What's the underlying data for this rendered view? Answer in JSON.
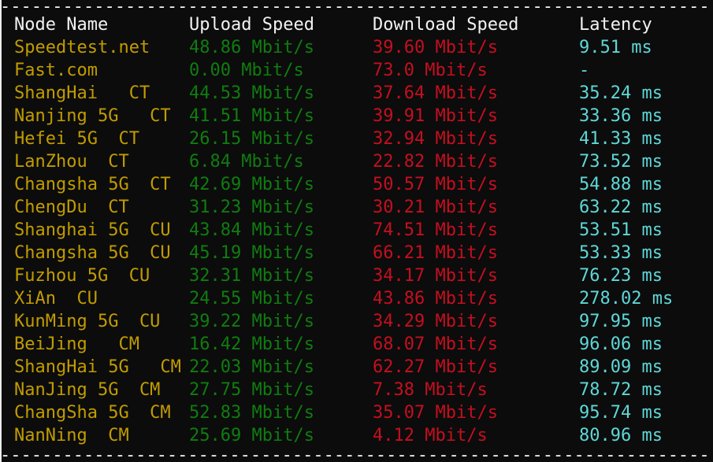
{
  "terminal": {
    "divider": "--------------------------------------------------------------------",
    "columns": [
      "Node Name",
      "Upload Speed",
      "Download Speed",
      "Latency"
    ],
    "rows": [
      {
        "node": "Speedtest.net",
        "upload": "48.86 Mbit/s",
        "download": "39.60 Mbit/s",
        "latency": "9.51 ms"
      },
      {
        "node": "Fast.com",
        "upload": "0.00 Mbit/s",
        "download": "73.0 Mbit/s",
        "latency": "-"
      },
      {
        "node": "ShangHai   CT",
        "upload": "44.53 Mbit/s",
        "download": "37.64 Mbit/s",
        "latency": "35.24 ms"
      },
      {
        "node": "Nanjing 5G   CT",
        "upload": "41.51 Mbit/s",
        "download": "39.91 Mbit/s",
        "latency": "33.36 ms"
      },
      {
        "node": "Hefei 5G  CT",
        "upload": "26.15 Mbit/s",
        "download": "32.94 Mbit/s",
        "latency": "41.33 ms"
      },
      {
        "node": "LanZhou  CT",
        "upload": "6.84 Mbit/s",
        "download": "22.82 Mbit/s",
        "latency": "73.52 ms"
      },
      {
        "node": "Changsha 5G  CT",
        "upload": "42.69 Mbit/s",
        "download": "50.57 Mbit/s",
        "latency": "54.88 ms"
      },
      {
        "node": "ChengDu  CT",
        "upload": "31.23 Mbit/s",
        "download": "30.21 Mbit/s",
        "latency": "63.22 ms"
      },
      {
        "node": "Shanghai 5G  CU",
        "upload": "43.84 Mbit/s",
        "download": "74.51 Mbit/s",
        "latency": "53.51 ms"
      },
      {
        "node": "Changsha 5G  CU",
        "upload": "45.19 Mbit/s",
        "download": "66.21 Mbit/s",
        "latency": "53.33 ms"
      },
      {
        "node": "Fuzhou 5G  CU",
        "upload": "32.31 Mbit/s",
        "download": "34.17 Mbit/s",
        "latency": "76.23 ms"
      },
      {
        "node": "XiAn  CU",
        "upload": "24.55 Mbit/s",
        "download": "43.86 Mbit/s",
        "latency": "278.02 ms"
      },
      {
        "node": "KunMing 5G  CU",
        "upload": "39.22 Mbit/s",
        "download": "34.29 Mbit/s",
        "latency": "97.95 ms"
      },
      {
        "node": "BeiJing   CM",
        "upload": "16.42 Mbit/s",
        "download": "68.07 Mbit/s",
        "latency": "96.06 ms"
      },
      {
        "node": "ShangHai 5G   CM",
        "upload": "22.03 Mbit/s",
        "download": "62.27 Mbit/s",
        "latency": "89.09 ms"
      },
      {
        "node": "NanJing 5G  CM",
        "upload": "27.75 Mbit/s",
        "download": "7.38 Mbit/s",
        "latency": "78.72 ms"
      },
      {
        "node": "ChangSha 5G  CM",
        "upload": "52.83 Mbit/s",
        "download": "35.07 Mbit/s",
        "latency": "95.74 ms"
      },
      {
        "node": "NanNing  CM",
        "upload": "25.69 Mbit/s",
        "download": "4.12 Mbit/s",
        "latency": "80.96 ms"
      }
    ],
    "colors": {
      "background": "#0c0c0c",
      "header_text": "#f2f2f2",
      "node_name": "#c19c00",
      "upload": "#107c10",
      "download": "#c50f1f",
      "latency": "#5fd7d7",
      "divider": "#f0f0f0"
    }
  }
}
